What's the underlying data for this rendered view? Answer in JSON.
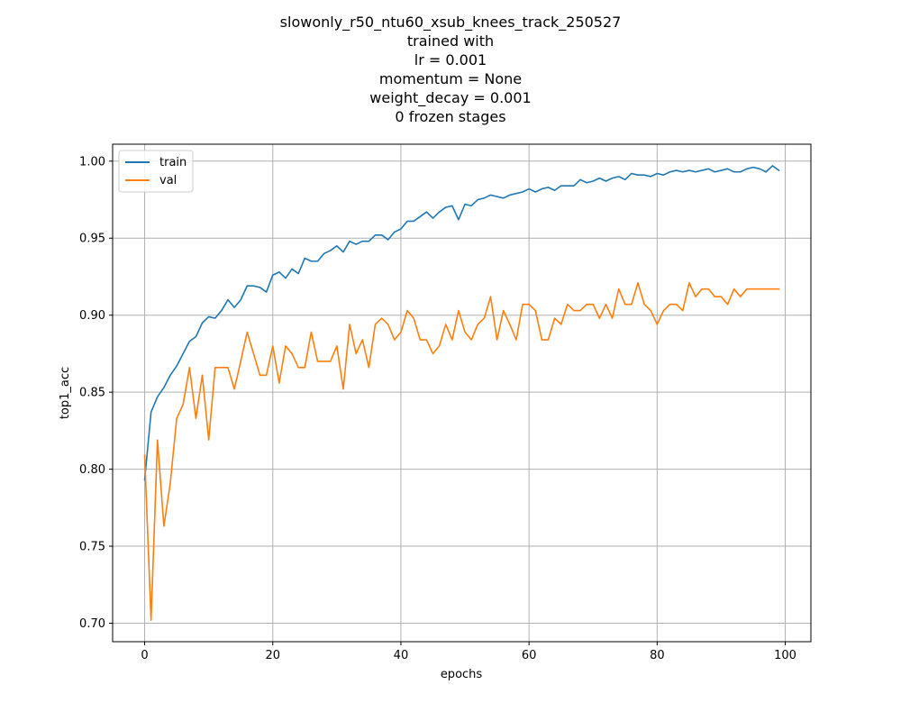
{
  "chart_data": {
    "type": "line",
    "title_lines": [
      "slowonly_r50_ntu60_xsub_knees_track_250527",
      "trained with",
      "lr = 0.001",
      "momentum = None",
      "weight_decay = 0.001",
      "0 frozen stages"
    ],
    "xlabel": "epochs",
    "ylabel": "top1_acc",
    "xlim": [
      -5,
      104
    ],
    "ylim": [
      0.688,
      1.011
    ],
    "xticks": [
      0,
      20,
      40,
      60,
      80,
      100
    ],
    "xtick_labels": [
      "0",
      "20",
      "40",
      "60",
      "80",
      "100"
    ],
    "yticks": [
      0.7,
      0.75,
      0.8,
      0.85,
      0.9,
      0.95,
      1.0
    ],
    "ytick_labels": [
      "0.70",
      "0.75",
      "0.80",
      "0.85",
      "0.90",
      "0.95",
      "1.00"
    ],
    "grid": true,
    "legend_position": "upper-left",
    "series": [
      {
        "name": "train",
        "color": "#1f77b4",
        "x": [
          0,
          1,
          2,
          3,
          4,
          5,
          6,
          7,
          8,
          9,
          10,
          11,
          12,
          13,
          14,
          15,
          16,
          17,
          18,
          19,
          20,
          21,
          22,
          23,
          24,
          25,
          26,
          27,
          28,
          29,
          30,
          31,
          32,
          33,
          34,
          35,
          36,
          37,
          38,
          39,
          40,
          41,
          42,
          43,
          44,
          45,
          46,
          47,
          48,
          49,
          50,
          51,
          52,
          53,
          54,
          55,
          56,
          57,
          58,
          59,
          60,
          61,
          62,
          63,
          64,
          65,
          66,
          67,
          68,
          69,
          70,
          71,
          72,
          73,
          74,
          75,
          76,
          77,
          78,
          79,
          80,
          81,
          82,
          83,
          84,
          85,
          86,
          87,
          88,
          89,
          90,
          91,
          92,
          93,
          94,
          95,
          96,
          97,
          98,
          99
        ],
        "values": [
          0.793,
          0.837,
          0.847,
          0.853,
          0.861,
          0.867,
          0.875,
          0.883,
          0.886,
          0.895,
          0.899,
          0.898,
          0.903,
          0.91,
          0.905,
          0.91,
          0.919,
          0.919,
          0.918,
          0.915,
          0.926,
          0.928,
          0.924,
          0.93,
          0.927,
          0.937,
          0.935,
          0.935,
          0.94,
          0.942,
          0.945,
          0.941,
          0.948,
          0.946,
          0.948,
          0.948,
          0.952,
          0.952,
          0.949,
          0.954,
          0.956,
          0.961,
          0.961,
          0.964,
          0.967,
          0.963,
          0.967,
          0.97,
          0.971,
          0.962,
          0.972,
          0.971,
          0.975,
          0.976,
          0.978,
          0.977,
          0.976,
          0.978,
          0.979,
          0.98,
          0.982,
          0.98,
          0.982,
          0.983,
          0.981,
          0.984,
          0.984,
          0.984,
          0.988,
          0.986,
          0.987,
          0.989,
          0.987,
          0.989,
          0.99,
          0.988,
          0.992,
          0.991,
          0.991,
          0.99,
          0.992,
          0.991,
          0.993,
          0.994,
          0.993,
          0.994,
          0.993,
          0.994,
          0.995,
          0.993,
          0.994,
          0.995,
          0.993,
          0.993,
          0.995,
          0.996,
          0.995,
          0.993,
          0.997,
          0.994
        ]
      },
      {
        "name": "val",
        "color": "#ff7f0e",
        "x": [
          0,
          1,
          2,
          3,
          4,
          5,
          6,
          7,
          8,
          9,
          10,
          11,
          12,
          13,
          14,
          15,
          16,
          17,
          18,
          19,
          20,
          21,
          22,
          23,
          24,
          25,
          26,
          27,
          28,
          29,
          30,
          31,
          32,
          33,
          34,
          35,
          36,
          37,
          38,
          39,
          40,
          41,
          42,
          43,
          44,
          45,
          46,
          47,
          48,
          49,
          50,
          51,
          52,
          53,
          54,
          55,
          56,
          57,
          58,
          59,
          60,
          61,
          62,
          63,
          64,
          65,
          66,
          67,
          68,
          69,
          70,
          71,
          72,
          73,
          74,
          75,
          76,
          77,
          78,
          79,
          80,
          81,
          82,
          83,
          84,
          85,
          86,
          87,
          88,
          89,
          90,
          91,
          92,
          93,
          94,
          95,
          96,
          97,
          98,
          99
        ],
        "values": [
          0.809,
          0.702,
          0.819,
          0.763,
          0.791,
          0.833,
          0.842,
          0.866,
          0.833,
          0.861,
          0.819,
          0.866,
          0.866,
          0.866,
          0.852,
          0.87,
          0.889,
          0.875,
          0.861,
          0.861,
          0.88,
          0.856,
          0.88,
          0.875,
          0.866,
          0.866,
          0.889,
          0.87,
          0.87,
          0.87,
          0.88,
          0.852,
          0.894,
          0.875,
          0.884,
          0.866,
          0.894,
          0.898,
          0.894,
          0.884,
          0.889,
          0.903,
          0.898,
          0.884,
          0.884,
          0.875,
          0.88,
          0.894,
          0.884,
          0.903,
          0.889,
          0.884,
          0.894,
          0.898,
          0.912,
          0.884,
          0.903,
          0.894,
          0.884,
          0.907,
          0.907,
          0.903,
          0.884,
          0.884,
          0.898,
          0.894,
          0.907,
          0.903,
          0.903,
          0.907,
          0.907,
          0.898,
          0.907,
          0.898,
          0.917,
          0.907,
          0.907,
          0.921,
          0.907,
          0.903,
          0.894,
          0.903,
          0.907,
          0.907,
          0.903,
          0.921,
          0.912,
          0.917,
          0.917,
          0.912,
          0.912,
          0.907,
          0.917,
          0.912,
          0.917,
          0.917,
          0.917,
          0.917,
          0.917,
          0.917
        ]
      }
    ]
  }
}
